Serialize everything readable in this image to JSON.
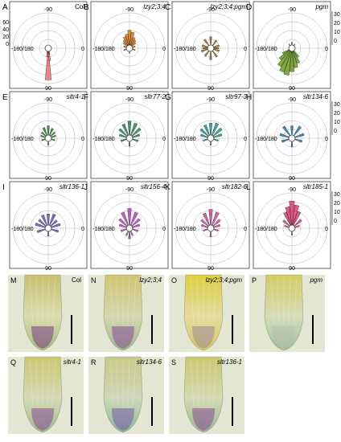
{
  "figure": {
    "polar_panels": [
      {
        "letter": "A",
        "title": "Col",
        "italic": false,
        "color": "#ec7070",
        "show_left_ticks": true,
        "show_right_ticks": false,
        "bins": [
          {
            "angle": 90,
            "value": 62
          },
          {
            "angle": 84,
            "value": 20
          },
          {
            "angle": 96,
            "value": 12
          },
          {
            "angle": 78,
            "value": 6
          },
          {
            "angle": 102,
            "value": 4
          }
        ]
      },
      {
        "letter": "B",
        "title": "lzy2;3;4",
        "italic": true,
        "color": "#e07a14",
        "show_left_ticks": false,
        "show_right_ticks": false,
        "bins": [
          {
            "angle": -90,
            "value": 16
          },
          {
            "angle": -78,
            "value": 14
          },
          {
            "angle": -102,
            "value": 12
          },
          {
            "angle": -66,
            "value": 9
          },
          {
            "angle": -114,
            "value": 10
          },
          {
            "angle": -54,
            "value": 7
          },
          {
            "angle": -126,
            "value": 7
          },
          {
            "angle": -42,
            "value": 5
          },
          {
            "angle": -138,
            "value": 5
          },
          {
            "angle": -18,
            "value": 3
          },
          {
            "angle": -162,
            "value": 3
          },
          {
            "angle": 18,
            "value": 3
          },
          {
            "angle": 162,
            "value": 3
          },
          {
            "angle": 90,
            "value": 2
          }
        ]
      },
      {
        "letter": "C",
        "title": "lzy2;3;4;pgm",
        "italic": true,
        "color": "#9a7418",
        "show_left_ticks": false,
        "show_right_ticks": false,
        "bins": [
          {
            "angle": -90,
            "value": 9
          },
          {
            "angle": -54,
            "value": 7
          },
          {
            "angle": -126,
            "value": 8
          },
          {
            "angle": -18,
            "value": 6
          },
          {
            "angle": -162,
            "value": 6
          },
          {
            "angle": 18,
            "value": 6
          },
          {
            "angle": 162,
            "value": 7
          },
          {
            "angle": 54,
            "value": 8
          },
          {
            "angle": 126,
            "value": 7
          },
          {
            "angle": 90,
            "value": 9
          },
          {
            "angle": 0,
            "value": 5
          },
          {
            "angle": 180,
            "value": 5
          }
        ]
      },
      {
        "letter": "D",
        "title": "pgm",
        "italic": true,
        "color": "#6a9a1c",
        "show_left_ticks": false,
        "show_right_ticks": true,
        "bins": [
          {
            "angle": 90,
            "value": 22
          },
          {
            "angle": 102,
            "value": 26
          },
          {
            "angle": 114,
            "value": 24
          },
          {
            "angle": 126,
            "value": 20
          },
          {
            "angle": 78,
            "value": 18
          },
          {
            "angle": 66,
            "value": 14
          },
          {
            "angle": 138,
            "value": 14
          },
          {
            "angle": 150,
            "value": 8
          },
          {
            "angle": 54,
            "value": 8
          },
          {
            "angle": -90,
            "value": 3
          },
          {
            "angle": -54,
            "value": 2
          },
          {
            "angle": -126,
            "value": 2
          }
        ]
      },
      {
        "letter": "E",
        "title": "sltr4-1",
        "italic": true,
        "color": "#1e8a2a",
        "show_left_ticks": false,
        "show_right_ticks": false,
        "bins": [
          {
            "angle": -90,
            "value": 10
          },
          {
            "angle": -66,
            "value": 8
          },
          {
            "angle": -114,
            "value": 9
          },
          {
            "angle": -42,
            "value": 6
          },
          {
            "angle": -138,
            "value": 6
          },
          {
            "angle": -18,
            "value": 5
          },
          {
            "angle": -162,
            "value": 5
          },
          {
            "angle": 18,
            "value": 4
          },
          {
            "angle": 162,
            "value": 4
          },
          {
            "angle": 90,
            "value": 4
          }
        ]
      },
      {
        "letter": "F",
        "title": "sltr77-2",
        "italic": true,
        "color": "#1e8a4a",
        "show_left_ticks": false,
        "show_right_ticks": false,
        "bins": [
          {
            "angle": -90,
            "value": 15
          },
          {
            "angle": -66,
            "value": 14
          },
          {
            "angle": -114,
            "value": 13
          },
          {
            "angle": -42,
            "value": 12
          },
          {
            "angle": -138,
            "value": 11
          },
          {
            "angle": -18,
            "value": 8
          },
          {
            "angle": -162,
            "value": 8
          },
          {
            "angle": 18,
            "value": 6
          },
          {
            "angle": 162,
            "value": 6
          },
          {
            "angle": 90,
            "value": 5
          }
        ]
      },
      {
        "letter": "G",
        "title": "sltr97-3",
        "italic": true,
        "color": "#1a9a88",
        "show_left_ticks": false,
        "show_right_ticks": false,
        "bins": [
          {
            "angle": -90,
            "value": 13
          },
          {
            "angle": -66,
            "value": 14
          },
          {
            "angle": -114,
            "value": 12
          },
          {
            "angle": -42,
            "value": 12
          },
          {
            "angle": -138,
            "value": 11
          },
          {
            "angle": -18,
            "value": 9
          },
          {
            "angle": -162,
            "value": 8
          },
          {
            "angle": 18,
            "value": 5
          },
          {
            "angle": 162,
            "value": 5
          },
          {
            "angle": 90,
            "value": 4
          }
        ]
      },
      {
        "letter": "H",
        "title": "sltr134-6",
        "italic": true,
        "color": "#1a78c0",
        "show_left_ticks": false,
        "show_right_ticks": true,
        "bins": [
          {
            "angle": -90,
            "value": 10
          },
          {
            "angle": -54,
            "value": 12
          },
          {
            "angle": -126,
            "value": 12
          },
          {
            "angle": -18,
            "value": 10
          },
          {
            "angle": -162,
            "value": 10
          },
          {
            "angle": 18,
            "value": 8
          },
          {
            "angle": 162,
            "value": 8
          },
          {
            "angle": 90,
            "value": 6
          }
        ]
      },
      {
        "letter": "I",
        "title": "sltr136-1",
        "italic": true,
        "color": "#5a5ac8",
        "show_left_ticks": false,
        "show_right_ticks": false,
        "bins": [
          {
            "angle": -90,
            "value": 12
          },
          {
            "angle": -66,
            "value": 13
          },
          {
            "angle": -114,
            "value": 12
          },
          {
            "angle": -42,
            "value": 9
          },
          {
            "angle": -138,
            "value": 10
          },
          {
            "angle": -18,
            "value": 10
          },
          {
            "angle": -162,
            "value": 11
          },
          {
            "angle": 18,
            "value": 8
          },
          {
            "angle": 162,
            "value": 9
          },
          {
            "angle": 90,
            "value": 5
          }
        ]
      },
      {
        "letter": "J",
        "title": "sltr156-4",
        "italic": true,
        "color": "#c040c8",
        "show_left_ticks": false,
        "show_right_ticks": false,
        "bins": [
          {
            "angle": -90,
            "value": 18
          },
          {
            "angle": -66,
            "value": 15
          },
          {
            "angle": -114,
            "value": 15
          },
          {
            "angle": -42,
            "value": 11
          },
          {
            "angle": -138,
            "value": 11
          },
          {
            "angle": -18,
            "value": 8
          },
          {
            "angle": -162,
            "value": 8
          },
          {
            "angle": 18,
            "value": 6
          },
          {
            "angle": 162,
            "value": 6
          },
          {
            "angle": 90,
            "value": 8
          },
          {
            "angle": 66,
            "value": 5
          },
          {
            "angle": 114,
            "value": 5
          }
        ]
      },
      {
        "letter": "K",
        "title": "sltr182-6",
        "italic": true,
        "color": "#d04898",
        "show_left_ticks": false,
        "show_right_ticks": false,
        "bins": [
          {
            "angle": -90,
            "value": 17
          },
          {
            "angle": -66,
            "value": 15
          },
          {
            "angle": -114,
            "value": 14
          },
          {
            "angle": -42,
            "value": 10
          },
          {
            "angle": -138,
            "value": 10
          },
          {
            "angle": -18,
            "value": 7
          },
          {
            "angle": -162,
            "value": 7
          },
          {
            "angle": 18,
            "value": 5
          },
          {
            "angle": 162,
            "value": 5
          },
          {
            "angle": 90,
            "value": 6
          }
        ]
      },
      {
        "letter": "L",
        "title": "sltr185-1",
        "italic": true,
        "color": "#e03a70",
        "show_left_ticks": false,
        "show_right_ticks": true,
        "bins": [
          {
            "angle": -90,
            "value": 26
          },
          {
            "angle": -78,
            "value": 22
          },
          {
            "angle": -102,
            "value": 20
          },
          {
            "angle": -66,
            "value": 16
          },
          {
            "angle": -114,
            "value": 15
          },
          {
            "angle": -42,
            "value": 10
          },
          {
            "angle": -138,
            "value": 9
          },
          {
            "angle": -18,
            "value": 5
          },
          {
            "angle": -162,
            "value": 5
          },
          {
            "angle": 90,
            "value": 4
          }
        ]
      }
    ],
    "axis_labels": {
      "top": "-90",
      "bottom": "90",
      "left": "-180/180",
      "right": "0"
    },
    "left_ticks": [
      "60",
      "40",
      "20",
      "0"
    ],
    "right_ticks": [
      "30",
      "20",
      "10",
      "0"
    ],
    "photo_panels": [
      {
        "letter": "M",
        "title": "Col",
        "italic": false,
        "bg": "#d9dcae",
        "tip_color": "#a8c07a",
        "stain": "#7a3a8a",
        "yellow": "#c8c070"
      },
      {
        "letter": "N",
        "title": "lzy2;3;4",
        "italic": true,
        "bg": "#d4d8b0",
        "tip_color": "#a0b88a",
        "stain": "#8a4aa0",
        "yellow": "#cfc470"
      },
      {
        "letter": "O",
        "title": "lzy2;3;4;pgm",
        "italic": true,
        "bg": "#e2dca0",
        "tip_color": "#d8c85a",
        "stain": "#9a88a0",
        "yellow": "#e0cc40"
      },
      {
        "letter": "P",
        "title": "pgm",
        "italic": true,
        "bg": "#d6dcba",
        "tip_color": "#9cc0a0",
        "stain": "#b8c0b0",
        "yellow": "#d2cc60"
      },
      {
        "letter": "Q",
        "title": "sltr4-1",
        "italic": true,
        "bg": "#d4dab4",
        "tip_color": "#a0bc8a",
        "stain": "#8a4a9a",
        "yellow": "#ccc672"
      },
      {
        "letter": "R",
        "title": "sltr134-6",
        "italic": true,
        "bg": "#d0d8b8",
        "tip_color": "#8ab8a0",
        "stain": "#7a5aa0",
        "yellow": "#c8c88a"
      },
      {
        "letter": "S",
        "title": "sltr136-1",
        "italic": true,
        "bg": "#d4dab4",
        "tip_color": "#9ab890",
        "stain": "#8a4a9a",
        "yellow": "#cac870"
      }
    ]
  }
}
